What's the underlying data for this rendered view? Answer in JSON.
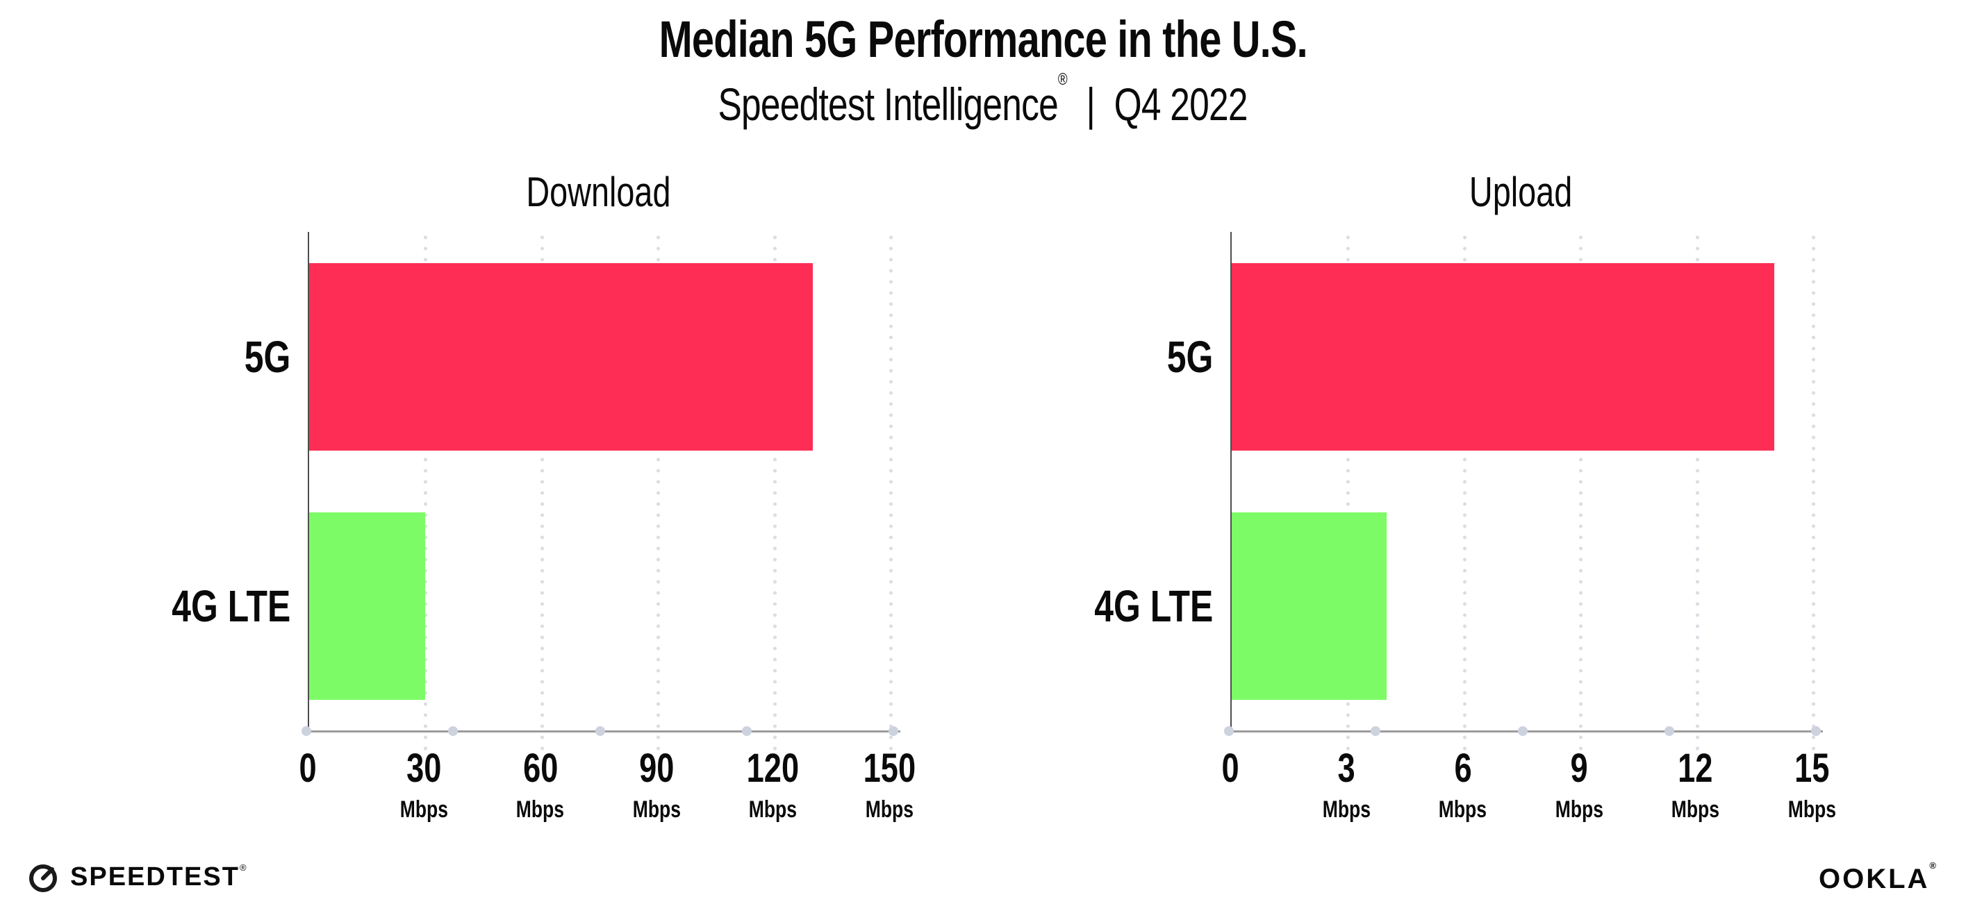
{
  "header": {
    "title": "Median 5G Performance in the U.S.",
    "subtitle_brand": "Speedtest Intelligence",
    "subtitle_reg": "®",
    "subtitle_sep": "|",
    "subtitle_period": "Q4 2022"
  },
  "chart_data": [
    {
      "type": "bar",
      "orientation": "horizontal",
      "title": "Download",
      "categories": [
        "5G",
        "4G LTE"
      ],
      "values": [
        130,
        30
      ],
      "unit": "Mbps",
      "xlim": [
        0,
        150
      ],
      "xticks": [
        0,
        30,
        60,
        90,
        120,
        150
      ],
      "bar_colors": [
        "#FD2D55",
        "#7DFB66"
      ],
      "grid": "dotted-vertical",
      "legend": "none"
    },
    {
      "type": "bar",
      "orientation": "horizontal",
      "title": "Upload",
      "categories": [
        "5G",
        "4G LTE"
      ],
      "values": [
        14,
        4
      ],
      "unit": "Mbps",
      "xlim": [
        0,
        15
      ],
      "xticks": [
        0,
        3,
        6,
        9,
        12,
        15
      ],
      "bar_colors": [
        "#FD2D55",
        "#7DFB66"
      ],
      "grid": "dotted-vertical",
      "legend": "none"
    }
  ],
  "colors": {
    "bar_5g": "#FD2D55",
    "bar_4g_lte": "#7DFB66",
    "gridline": "#DCDCE6",
    "x_axis": "#9B9B9B",
    "y_spine": "#4D4D4D",
    "axis_dot": "#CCD2DE",
    "text": "#0A0A0A",
    "background": "#FFFFFF"
  },
  "footer": {
    "speedtest_label": "SPEEDTEST",
    "speedtest_reg": "®",
    "speedtest_icon": "speedometer-gauge-icon",
    "ookla_label": "OOKLA",
    "ookla_reg": "®"
  }
}
